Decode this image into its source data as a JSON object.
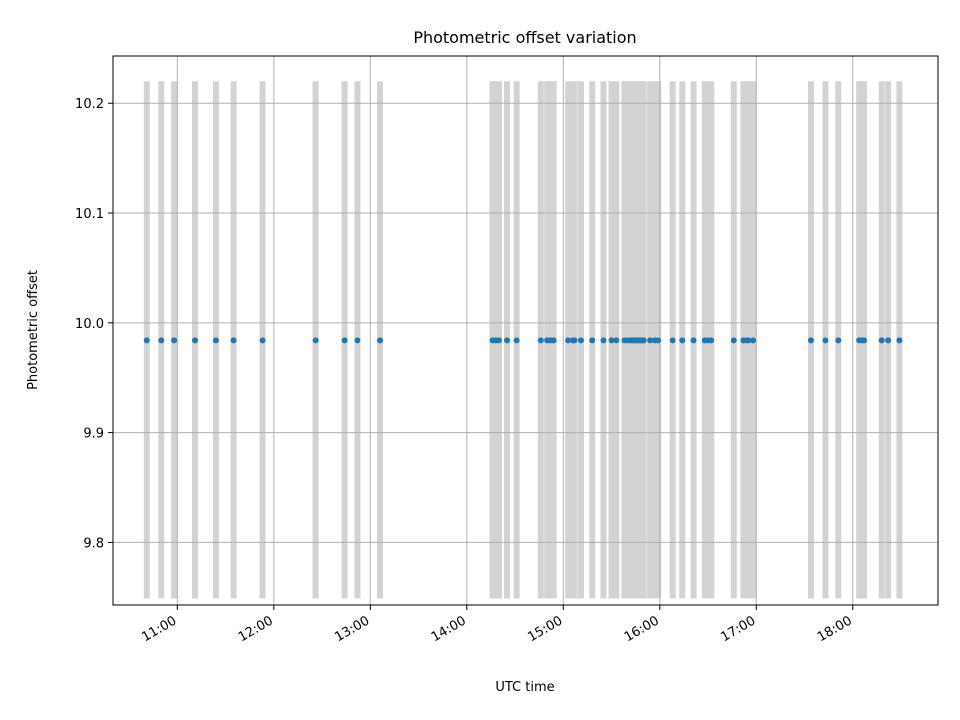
{
  "chart_data": {
    "type": "scatter",
    "title": "Photometric offset variation",
    "xlabel": "UTC time",
    "ylabel": "Photometric offset",
    "x_axis": {
      "type": "time",
      "range": [
        "10:20",
        "18:53"
      ],
      "ticks": [
        "11:00",
        "12:00",
        "13:00",
        "14:00",
        "15:00",
        "16:00",
        "17:00",
        "18:00"
      ]
    },
    "y_axis": {
      "range": [
        9.743,
        10.243
      ],
      "ticks": [
        9.8,
        9.9,
        10.0,
        10.1,
        10.2
      ],
      "tick_labels": [
        "9.8",
        "9.9",
        "10.0",
        "10.1",
        "10.2"
      ]
    },
    "grid": true,
    "series": [
      {
        "marker": "point",
        "color": "#1f77b4",
        "x": [
          "10:41",
          "10:50",
          "10:58",
          "11:11",
          "11:24",
          "11:35",
          "11:53",
          "12:26",
          "12:44",
          "12:52",
          "13:06",
          "14:16",
          "14:18",
          "14:20",
          "14:25",
          "14:31",
          "14:46",
          "14:50",
          "14:52",
          "14:54",
          "15:03",
          "15:06",
          "15:07",
          "15:11",
          "15:18",
          "15:25",
          "15:30",
          "15:33",
          "15:38",
          "15:40",
          "15:42",
          "15:43",
          "15:44",
          "15:45",
          "15:46",
          "15:47",
          "15:48",
          "15:49",
          "15:50",
          "15:54",
          "15:57",
          "15:59",
          "16:08",
          "16:14",
          "16:21",
          "16:28",
          "16:30",
          "16:32",
          "16:46",
          "16:52",
          "16:54",
          "16:55",
          "16:58",
          "17:34",
          "17:43",
          "17:51",
          "18:04",
          "18:06",
          "18:07",
          "18:18",
          "18:22",
          "18:29"
        ],
        "y": [
          9.984,
          9.984,
          9.984,
          9.984,
          9.984,
          9.984,
          9.984,
          9.984,
          9.984,
          9.984,
          9.984,
          9.984,
          9.984,
          9.984,
          9.984,
          9.984,
          9.984,
          9.984,
          9.984,
          9.984,
          9.984,
          9.984,
          9.984,
          9.984,
          9.984,
          9.984,
          9.984,
          9.984,
          9.984,
          9.984,
          9.984,
          9.984,
          9.984,
          9.984,
          9.984,
          9.984,
          9.984,
          9.984,
          9.984,
          9.984,
          9.984,
          9.984,
          9.984,
          9.984,
          9.984,
          9.984,
          9.984,
          9.984,
          9.984,
          9.984,
          9.984,
          9.984,
          9.984,
          9.984,
          9.984,
          9.984,
          9.984,
          9.984,
          9.984,
          9.984,
          9.984,
          9.984
        ]
      }
    ],
    "vertical_bands": {
      "color": "#d3d3d3",
      "y_range": [
        9.749,
        10.22
      ],
      "x": [
        "10:41",
        "10:50",
        "10:58",
        "11:11",
        "11:24",
        "11:35",
        "11:53",
        "12:26",
        "12:44",
        "12:52",
        "13:06",
        "14:16",
        "14:18",
        "14:20",
        "14:25",
        "14:31",
        "14:46",
        "14:50",
        "14:52",
        "14:54",
        "15:03",
        "15:06",
        "15:07",
        "15:11",
        "15:18",
        "15:25",
        "15:30",
        "15:33",
        "15:38",
        "15:40",
        "15:42",
        "15:43",
        "15:44",
        "15:45",
        "15:46",
        "15:47",
        "15:48",
        "15:49",
        "15:50",
        "15:54",
        "15:57",
        "15:59",
        "16:08",
        "16:14",
        "16:21",
        "16:28",
        "16:30",
        "16:32",
        "16:46",
        "16:52",
        "16:54",
        "16:55",
        "16:58",
        "17:34",
        "17:43",
        "17:51",
        "18:04",
        "18:06",
        "18:07",
        "18:18",
        "18:22",
        "18:29"
      ]
    }
  }
}
